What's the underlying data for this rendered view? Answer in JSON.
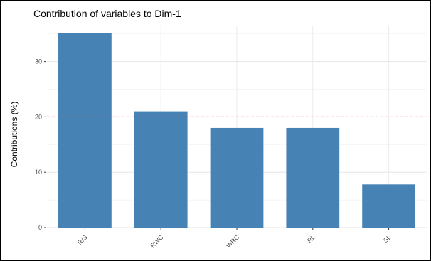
{
  "chart_data": {
    "type": "bar",
    "title": "Contribution of variables to Dim-1",
    "xlabel": "",
    "ylabel": "Contributions (%)",
    "categories": [
      "R/S",
      "RWC",
      "WRC",
      "RL",
      "SL"
    ],
    "values": [
      35.2,
      21.0,
      18.0,
      18.0,
      7.8
    ],
    "ylim": [
      0,
      36.5
    ],
    "yticks": [
      0,
      10,
      20,
      30
    ],
    "reference_line": {
      "value": 20,
      "style": "dashed",
      "color": "#ff5a5a"
    },
    "bar_color": "#4682b4",
    "grid": true,
    "legend": "none"
  }
}
